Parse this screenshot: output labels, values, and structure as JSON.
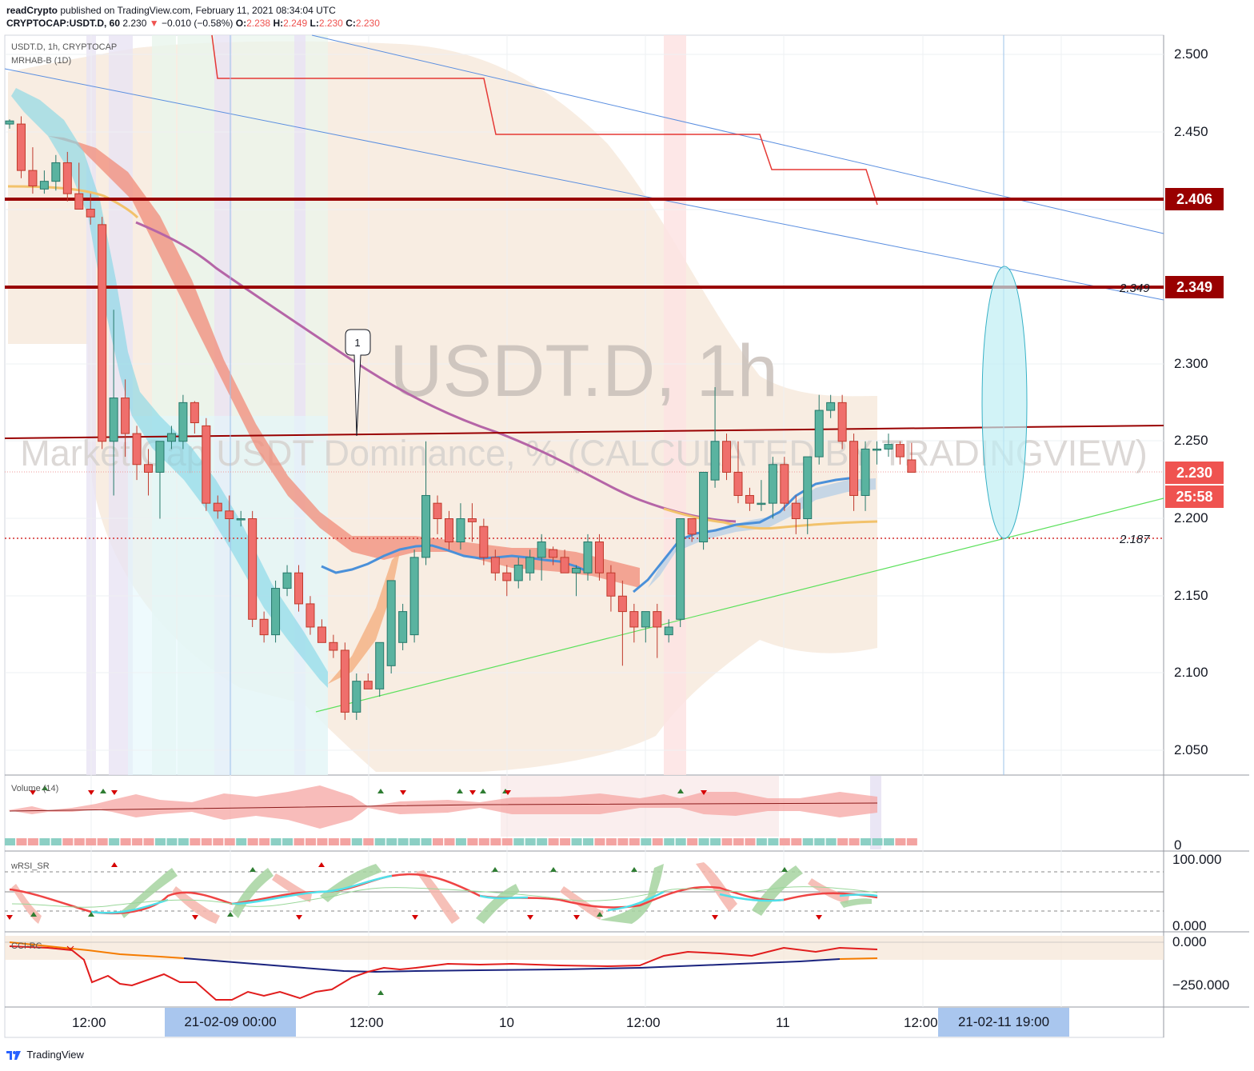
{
  "header": {
    "publisher": "readCrypto",
    "published_text": "published on TradingView.com, February 11, 2021 08:34:04 UTC",
    "symbol": "CRYPTOCAP:USDT.D, 60",
    "last": "2.230",
    "arrow": "▼",
    "change": "−0.010 (−0.58%)",
    "o": "2.238",
    "h": "2.249",
    "l": "2.230",
    "c": "2.230"
  },
  "legend": {
    "main": "USDT.D, 1h, CRYPTOCAP",
    "indicator": "MRHAB-B (1D)",
    "volume": "Volume (14)",
    "wrsi": "wRSI_SR",
    "cci": "CCI-RC"
  },
  "watermark": {
    "line1": "USDT.D, 1h",
    "line2": "Market Cap USDT Dominance, % (CALCULATED BY TRADINGVIEW)"
  },
  "drawing_label": "1",
  "price_axis": [
    "2.500",
    "2.450",
    "2.300",
    "2.250",
    "2.200",
    "2.150",
    "2.100",
    "2.050"
  ],
  "price_axis_boxes": {
    "level_high": "2.406",
    "level_mid": "2.349",
    "last_price": "2.230",
    "countdown": "25:58"
  },
  "line_labels": {
    "upper": "2.349",
    "lower": "2.187"
  },
  "volume_axis": "0",
  "wrsi_axis": [
    "100.000",
    "0.000"
  ],
  "cci_axis": [
    "0.000",
    "−250.000"
  ],
  "time_axis": [
    "12:00",
    "12:00",
    "10",
    "12:00",
    "11",
    "12:00"
  ],
  "time_boxes": {
    "left": "21-02-09   00:00",
    "right": "21-02-11   19:00"
  },
  "footer": "TradingView",
  "colors": {
    "up": "#4a9a8a",
    "down": "#ef5350",
    "level": "#990000",
    "accent": "#2962ff"
  },
  "chart_data": {
    "type": "candlestick",
    "y_range": [
      2.03,
      2.51
    ],
    "levels": [
      2.406,
      2.349,
      2.187
    ],
    "candles": [
      [
        2.455,
        2.458,
        2.452,
        2.457
      ],
      [
        2.455,
        2.46,
        2.42,
        2.425
      ],
      [
        2.425,
        2.44,
        2.41,
        2.415
      ],
      [
        2.413,
        2.425,
        2.41,
        2.418
      ],
      [
        2.418,
        2.435,
        2.412,
        2.43
      ],
      [
        2.43,
        2.437,
        2.405,
        2.41
      ],
      [
        2.41,
        2.43,
        2.4,
        2.4
      ],
      [
        2.4,
        2.41,
        2.39,
        2.395
      ],
      [
        2.39,
        2.395,
        2.245,
        2.25
      ],
      [
        2.25,
        2.335,
        2.215,
        2.278
      ],
      [
        2.278,
        2.29,
        2.24,
        2.255
      ],
      [
        2.255,
        2.26,
        2.225,
        2.235
      ],
      [
        2.235,
        2.245,
        2.215,
        2.23
      ],
      [
        2.23,
        2.25,
        2.2,
        2.25
      ],
      [
        2.25,
        2.26,
        2.245,
        2.255
      ],
      [
        2.25,
        2.28,
        2.245,
        2.275
      ],
      [
        2.275,
        2.276,
        2.255,
        2.262
      ],
      [
        2.26,
        2.265,
        2.205,
        2.21
      ],
      [
        2.21,
        2.215,
        2.2,
        2.205
      ],
      [
        2.205,
        2.215,
        2.185,
        2.2
      ],
      [
        2.2,
        2.205,
        2.195,
        2.2
      ],
      [
        2.2,
        2.205,
        2.13,
        2.135
      ],
      [
        2.135,
        2.14,
        2.12,
        2.125
      ],
      [
        2.125,
        2.16,
        2.12,
        2.155
      ],
      [
        2.155,
        2.17,
        2.15,
        2.165
      ],
      [
        2.165,
        2.17,
        2.14,
        2.145
      ],
      [
        2.145,
        2.15,
        2.125,
        2.13
      ],
      [
        2.13,
        2.135,
        2.12,
        2.12
      ],
      [
        2.12,
        2.125,
        2.11,
        2.115
      ],
      [
        2.115,
        2.12,
        2.07,
        2.075
      ],
      [
        2.075,
        2.1,
        2.07,
        2.095
      ],
      [
        2.095,
        2.1,
        2.09,
        2.09
      ],
      [
        2.09,
        2.12,
        2.085,
        2.12
      ],
      [
        2.105,
        2.16,
        2.1,
        2.16
      ],
      [
        2.12,
        2.145,
        2.115,
        2.14
      ],
      [
        2.125,
        2.18,
        2.12,
        2.175
      ],
      [
        2.175,
        2.25,
        2.17,
        2.215
      ],
      [
        2.21,
        2.215,
        2.19,
        2.2
      ],
      [
        2.2,
        2.205,
        2.18,
        2.185
      ],
      [
        2.185,
        2.21,
        2.18,
        2.2
      ],
      [
        2.2,
        2.21,
        2.185,
        2.198
      ],
      [
        2.195,
        2.2,
        2.17,
        2.175
      ],
      [
        2.175,
        2.18,
        2.16,
        2.165
      ],
      [
        2.165,
        2.17,
        2.15,
        2.16
      ],
      [
        2.16,
        2.175,
        2.155,
        2.17
      ],
      [
        2.165,
        2.18,
        2.16,
        2.175
      ],
      [
        2.175,
        2.19,
        2.16,
        2.185
      ],
      [
        2.18,
        2.182,
        2.17,
        2.175
      ],
      [
        2.175,
        2.18,
        2.165,
        2.165
      ],
      [
        2.165,
        2.17,
        2.15,
        2.168
      ],
      [
        2.165,
        2.19,
        2.16,
        2.185
      ],
      [
        2.185,
        2.19,
        2.16,
        2.165
      ],
      [
        2.165,
        2.17,
        2.14,
        2.15
      ],
      [
        2.15,
        2.16,
        2.105,
        2.14
      ],
      [
        2.14,
        2.145,
        2.12,
        2.13
      ],
      [
        2.13,
        2.14,
        2.12,
        2.14
      ],
      [
        2.14,
        2.145,
        2.11,
        2.13
      ],
      [
        2.125,
        2.135,
        2.12,
        2.13
      ],
      [
        2.135,
        2.2,
        2.13,
        2.2
      ],
      [
        2.2,
        2.2,
        2.185,
        2.19
      ],
      [
        2.185,
        2.23,
        2.18,
        2.23
      ],
      [
        2.225,
        2.285,
        2.22,
        2.25
      ],
      [
        2.25,
        2.255,
        2.225,
        2.23
      ],
      [
        2.23,
        2.25,
        2.21,
        2.215
      ],
      [
        2.215,
        2.22,
        2.205,
        2.21
      ],
      [
        2.21,
        2.225,
        2.205,
        2.21
      ],
      [
        2.21,
        2.24,
        2.2,
        2.235
      ],
      [
        2.235,
        2.24,
        2.205,
        2.21
      ],
      [
        2.21,
        2.215,
        2.19,
        2.2
      ],
      [
        2.2,
        2.24,
        2.19,
        2.24
      ],
      [
        2.24,
        2.28,
        2.235,
        2.27
      ],
      [
        2.27,
        2.28,
        2.265,
        2.275
      ],
      [
        2.275,
        2.28,
        2.245,
        2.25
      ],
      [
        2.25,
        2.255,
        2.205,
        2.215
      ],
      [
        2.215,
        2.25,
        2.205,
        2.245
      ],
      [
        2.245,
        2.25,
        2.235,
        2.245
      ],
      [
        2.245,
        2.255,
        2.24,
        2.248
      ],
      [
        2.248,
        2.25,
        2.235,
        2.24
      ],
      [
        2.238,
        2.249,
        2.23,
        2.23
      ]
    ]
  }
}
